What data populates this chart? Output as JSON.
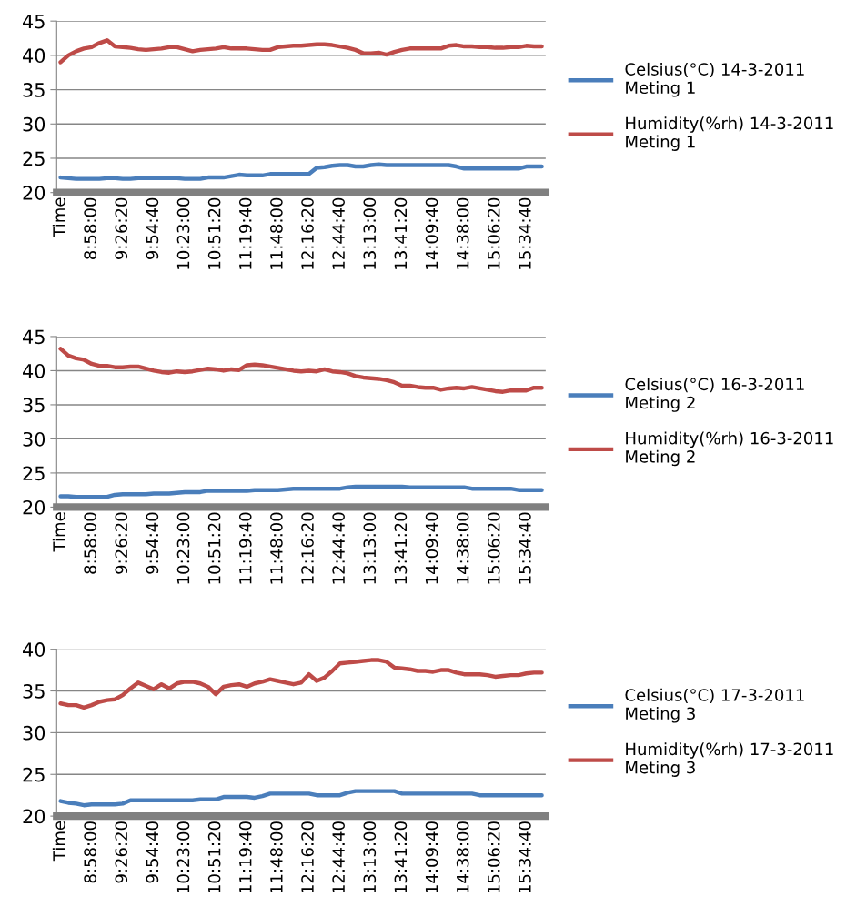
{
  "chart_data": [
    {
      "type": "line",
      "categories": [
        "Time",
        null,
        null,
        null,
        "8:58:00",
        null,
        null,
        null,
        "9:26:20",
        null,
        null,
        null,
        "9:54:40",
        null,
        null,
        null,
        "10:23:00",
        null,
        null,
        null,
        "10:51:20",
        null,
        null,
        null,
        "11:19:40",
        null,
        null,
        null,
        "11:48:00",
        null,
        null,
        null,
        "12:16:20",
        null,
        null,
        null,
        "12:44:40",
        null,
        null,
        null,
        "13:13:00",
        null,
        null,
        null,
        "13:41:20",
        null,
        null,
        null,
        "14:09:40",
        null,
        null,
        null,
        "14:38:00",
        null,
        null,
        null,
        "15:06:20",
        null,
        null,
        null,
        "15:34:40",
        null,
        null
      ],
      "ylim": [
        20,
        45
      ],
      "yticks": [
        20,
        25,
        30,
        35,
        40,
        45
      ],
      "grid": "y",
      "legend": "right",
      "marker": "none",
      "line_style": "solid",
      "series": [
        {
          "name": "Celsius(°C) 14-3-2011 Meting 1",
          "color": "#4a7ebb",
          "values": [
            22.2,
            22.1,
            22.0,
            22.0,
            22.0,
            22.0,
            22.1,
            22.1,
            22.0,
            22.0,
            22.1,
            22.1,
            22.1,
            22.1,
            22.1,
            22.1,
            22.0,
            22.0,
            22.0,
            22.2,
            22.2,
            22.2,
            22.4,
            22.6,
            22.5,
            22.5,
            22.5,
            22.7,
            22.7,
            22.7,
            22.7,
            22.7,
            22.7,
            23.6,
            23.7,
            23.9,
            24.0,
            24.0,
            23.8,
            23.8,
            24.0,
            24.1,
            24.0,
            24.0,
            24.0,
            24.0,
            24.0,
            24.0,
            24.0,
            24.0,
            24.0,
            23.8,
            23.5,
            23.5,
            23.5,
            23.5,
            23.5,
            23.5,
            23.5,
            23.5,
            23.8,
            23.8,
            23.8
          ]
        },
        {
          "name": "Humidity(%rh) 14-3-2011 Meting 1",
          "color": "#be4b48",
          "values": [
            39.0,
            40.0,
            40.6,
            41.0,
            41.2,
            41.8,
            42.2,
            41.3,
            41.2,
            41.1,
            40.9,
            40.8,
            40.9,
            41.0,
            41.2,
            41.2,
            40.9,
            40.6,
            40.8,
            40.9,
            41.0,
            41.2,
            41.0,
            41.0,
            41.0,
            40.9,
            40.8,
            40.8,
            41.2,
            41.3,
            41.4,
            41.4,
            41.5,
            41.6,
            41.6,
            41.5,
            41.3,
            41.1,
            40.8,
            40.3,
            40.3,
            40.4,
            40.1,
            40.5,
            40.8,
            41.0,
            41.0,
            41.0,
            41.0,
            41.0,
            41.4,
            41.5,
            41.3,
            41.3,
            41.2,
            41.2,
            41.1,
            41.1,
            41.2,
            41.2,
            41.4,
            41.3,
            41.3
          ]
        }
      ]
    },
    {
      "type": "line",
      "categories": [
        "Time",
        null,
        null,
        null,
        "8:58:00",
        null,
        null,
        null,
        "9:26:20",
        null,
        null,
        null,
        "9:54:40",
        null,
        null,
        null,
        "10:23:00",
        null,
        null,
        null,
        "10:51:20",
        null,
        null,
        null,
        "11:19:40",
        null,
        null,
        null,
        "11:48:00",
        null,
        null,
        null,
        "12:16:20",
        null,
        null,
        null,
        "12:44:40",
        null,
        null,
        null,
        "13:13:00",
        null,
        null,
        null,
        "13:41:20",
        null,
        null,
        null,
        "14:09:40",
        null,
        null,
        null,
        "14:38:00",
        null,
        null,
        null,
        "15:06:20",
        null,
        null,
        null,
        "15:34:40",
        null,
        null
      ],
      "ylim": [
        20,
        45
      ],
      "yticks": [
        20,
        25,
        30,
        35,
        40,
        45
      ],
      "grid": "y",
      "legend": "right",
      "marker": "none",
      "line_style": "solid",
      "series": [
        {
          "name": "Celsius(°C) 16-3-2011 Meting 2",
          "color": "#4a7ebb",
          "values": [
            21.6,
            21.6,
            21.5,
            21.5,
            21.5,
            21.5,
            21.5,
            21.8,
            21.9,
            21.9,
            21.9,
            21.9,
            22.0,
            22.0,
            22.0,
            22.1,
            22.2,
            22.2,
            22.2,
            22.4,
            22.4,
            22.4,
            22.4,
            22.4,
            22.4,
            22.5,
            22.5,
            22.5,
            22.5,
            22.6,
            22.7,
            22.7,
            22.7,
            22.7,
            22.7,
            22.7,
            22.7,
            22.9,
            23.0,
            23.0,
            23.0,
            23.0,
            23.0,
            23.0,
            23.0,
            22.9,
            22.9,
            22.9,
            22.9,
            22.9,
            22.9,
            22.9,
            22.9,
            22.7,
            22.7,
            22.7,
            22.7,
            22.7,
            22.7,
            22.5,
            22.5,
            22.5,
            22.5
          ]
        },
        {
          "name": "Humidity(%rh) 16-3-2011 Meting 2",
          "color": "#be4b48",
          "values": [
            43.2,
            42.2,
            41.8,
            41.6,
            41.0,
            40.7,
            40.7,
            40.5,
            40.5,
            40.6,
            40.6,
            40.3,
            40.0,
            39.8,
            39.7,
            39.9,
            39.8,
            39.9,
            40.1,
            40.3,
            40.2,
            40.0,
            40.2,
            40.1,
            40.8,
            40.9,
            40.8,
            40.6,
            40.4,
            40.2,
            40.0,
            39.9,
            40.0,
            39.9,
            40.2,
            39.9,
            39.8,
            39.6,
            39.2,
            39.0,
            38.9,
            38.8,
            38.6,
            38.3,
            37.8,
            37.8,
            37.6,
            37.5,
            37.5,
            37.2,
            37.4,
            37.5,
            37.4,
            37.6,
            37.4,
            37.2,
            37.0,
            36.9,
            37.1,
            37.1,
            37.1,
            37.5,
            37.5
          ]
        }
      ]
    },
    {
      "type": "line",
      "categories": [
        "Time",
        null,
        null,
        null,
        "8:58:00",
        null,
        null,
        null,
        "9:26:20",
        null,
        null,
        null,
        "9:54:40",
        null,
        null,
        null,
        "10:23:00",
        null,
        null,
        null,
        "10:51:20",
        null,
        null,
        null,
        "11:19:40",
        null,
        null,
        null,
        "11:48:00",
        null,
        null,
        null,
        "12:16:20",
        null,
        null,
        null,
        "12:44:40",
        null,
        null,
        null,
        "13:13:00",
        null,
        null,
        null,
        "13:41:20",
        null,
        null,
        null,
        "14:09:40",
        null,
        null,
        null,
        "14:38:00",
        null,
        null,
        null,
        "15:06:20",
        null,
        null,
        null,
        "15:34:40",
        null,
        null
      ],
      "ylim": [
        20,
        40
      ],
      "yticks": [
        20,
        25,
        30,
        35,
        40
      ],
      "grid": "y",
      "legend": "right",
      "marker": "none",
      "line_style": "solid",
      "series": [
        {
          "name": "Celsius(°C) 17-3-2011 Meting 3",
          "color": "#4a7ebb",
          "values": [
            21.8,
            21.6,
            21.5,
            21.3,
            21.4,
            21.4,
            21.4,
            21.4,
            21.5,
            21.9,
            21.9,
            21.9,
            21.9,
            21.9,
            21.9,
            21.9,
            21.9,
            21.9,
            22.0,
            22.0,
            22.0,
            22.3,
            22.3,
            22.3,
            22.3,
            22.2,
            22.4,
            22.7,
            22.7,
            22.7,
            22.7,
            22.7,
            22.7,
            22.5,
            22.5,
            22.5,
            22.5,
            22.8,
            23.0,
            23.0,
            23.0,
            23.0,
            23.0,
            23.0,
            22.7,
            22.7,
            22.7,
            22.7,
            22.7,
            22.7,
            22.7,
            22.7,
            22.7,
            22.7,
            22.5,
            22.5,
            22.5,
            22.5,
            22.5,
            22.5,
            22.5,
            22.5,
            22.5
          ]
        },
        {
          "name": "Humidity(%rh) 17-3-2011 Meting 3",
          "color": "#be4b48",
          "values": [
            33.5,
            33.3,
            33.3,
            33.0,
            33.3,
            33.7,
            33.9,
            34.0,
            34.5,
            35.3,
            36.0,
            35.6,
            35.2,
            35.8,
            35.3,
            35.9,
            36.1,
            36.1,
            35.9,
            35.5,
            34.6,
            35.5,
            35.7,
            35.8,
            35.5,
            35.9,
            36.1,
            36.4,
            36.2,
            36.0,
            35.8,
            36.0,
            37.0,
            36.2,
            36.6,
            37.4,
            38.3,
            38.4,
            38.5,
            38.6,
            38.7,
            38.7,
            38.5,
            37.8,
            37.7,
            37.6,
            37.4,
            37.4,
            37.3,
            37.5,
            37.5,
            37.2,
            37.0,
            37.0,
            37.0,
            36.9,
            36.7,
            36.8,
            36.9,
            36.9,
            37.1,
            37.2,
            37.2
          ]
        }
      ]
    }
  ]
}
